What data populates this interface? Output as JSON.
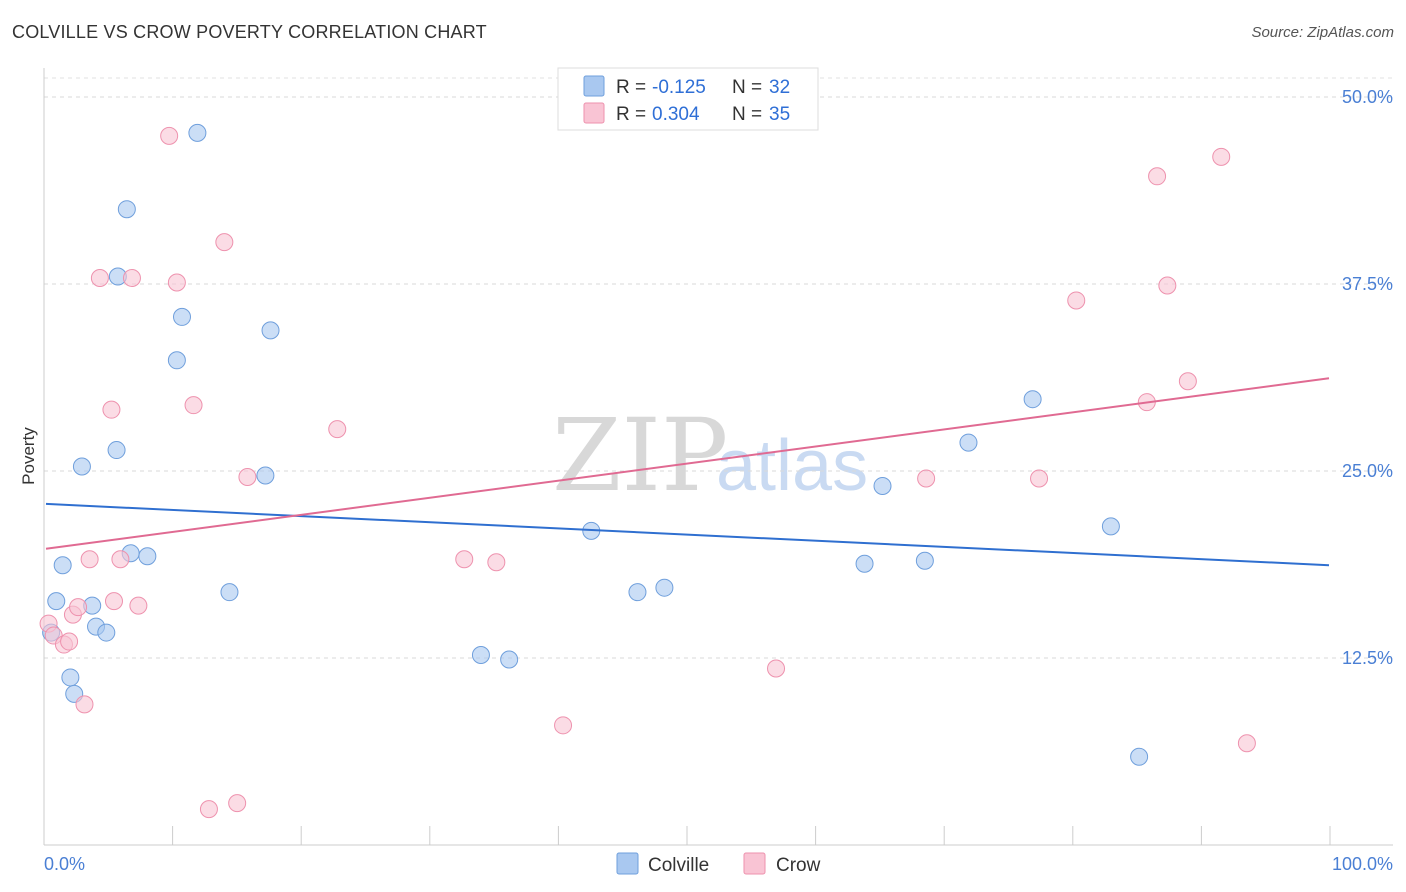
{
  "title": "COLVILLE VS CROW POVERTY CORRELATION CHART",
  "source": "Source: ZipAtlas.com",
  "chart_data": {
    "type": "scatter",
    "title": "COLVILLE VS CROW POVERTY CORRELATION CHART",
    "xlabel": "",
    "ylabel": "Poverty",
    "xlim": [
      0,
      100
    ],
    "ylim": [
      0,
      50
    ],
    "x_tick_labels": [
      "0.0%",
      "100.0%"
    ],
    "y_ticks": [
      12.5,
      25.0,
      37.5,
      50.0
    ],
    "y_tick_labels": [
      "12.5%",
      "25.0%",
      "37.5%",
      "50.0%"
    ],
    "grid": true,
    "watermark": {
      "zip": "ZIP",
      "atlas": "atlas"
    },
    "legend": {
      "r_label": "R =",
      "n_label": "N =",
      "entries": [
        {
          "name": "Colville",
          "r": "-0.125",
          "n": "32"
        },
        {
          "name": "Crow",
          "r": "0.304",
          "n": "35"
        }
      ]
    },
    "series": [
      {
        "name": "Colville",
        "color": "#a9c8f0",
        "stroke": "#6f9fdc",
        "line_color": "#2f6fd0",
        "trend": [
          [
            0,
            22.8
          ],
          [
            100,
            18.7
          ]
        ],
        "points": [
          [
            0.4,
            14.2
          ],
          [
            0.8,
            16.3
          ],
          [
            1.3,
            18.7
          ],
          [
            1.9,
            11.2
          ],
          [
            2.2,
            10.1
          ],
          [
            2.8,
            25.3
          ],
          [
            3.6,
            16.0
          ],
          [
            3.9,
            14.6
          ],
          [
            4.7,
            14.2
          ],
          [
            5.5,
            26.4
          ],
          [
            5.6,
            38.0
          ],
          [
            6.3,
            42.5
          ],
          [
            6.6,
            19.5
          ],
          [
            7.9,
            19.3
          ],
          [
            10.2,
            32.4
          ],
          [
            10.6,
            35.3
          ],
          [
            11.8,
            47.6
          ],
          [
            14.3,
            16.9
          ],
          [
            17.1,
            24.7
          ],
          [
            17.5,
            34.4
          ],
          [
            33.9,
            12.7
          ],
          [
            36.1,
            12.4
          ],
          [
            42.5,
            21.0
          ],
          [
            46.1,
            16.9
          ],
          [
            48.2,
            17.2
          ],
          [
            63.8,
            18.8
          ],
          [
            65.2,
            24.0
          ],
          [
            68.5,
            19.0
          ],
          [
            71.9,
            26.9
          ],
          [
            76.9,
            29.8
          ],
          [
            83.0,
            21.3
          ],
          [
            85.2,
            5.9
          ]
        ]
      },
      {
        "name": "Crow",
        "color": "#f9c4d4",
        "stroke": "#ee92ae",
        "line_color": "#e06a92",
        "trend": [
          [
            0,
            19.8
          ],
          [
            100,
            31.2
          ]
        ],
        "points": [
          [
            0.2,
            14.8
          ],
          [
            0.6,
            14.0
          ],
          [
            1.4,
            13.4
          ],
          [
            1.8,
            13.6
          ],
          [
            2.1,
            15.4
          ],
          [
            2.5,
            15.9
          ],
          [
            3.0,
            9.4
          ],
          [
            3.4,
            19.1
          ],
          [
            4.2,
            37.9
          ],
          [
            5.1,
            29.1
          ],
          [
            5.3,
            16.3
          ],
          [
            5.8,
            19.1
          ],
          [
            6.7,
            37.9
          ],
          [
            7.2,
            16.0
          ],
          [
            9.6,
            47.4
          ],
          [
            10.2,
            37.6
          ],
          [
            11.5,
            29.4
          ],
          [
            12.7,
            2.4
          ],
          [
            13.9,
            40.3
          ],
          [
            14.9,
            2.8
          ],
          [
            15.7,
            24.6
          ],
          [
            22.7,
            27.8
          ],
          [
            32.6,
            19.1
          ],
          [
            35.1,
            18.9
          ],
          [
            40.3,
            8.0
          ],
          [
            56.9,
            11.8
          ],
          [
            68.6,
            24.5
          ],
          [
            77.4,
            24.5
          ],
          [
            80.3,
            36.4
          ],
          [
            85.8,
            29.6
          ],
          [
            86.6,
            44.7
          ],
          [
            87.4,
            37.4
          ],
          [
            89.0,
            31.0
          ],
          [
            91.6,
            46.0
          ],
          [
            93.6,
            6.8
          ]
        ]
      }
    ]
  }
}
